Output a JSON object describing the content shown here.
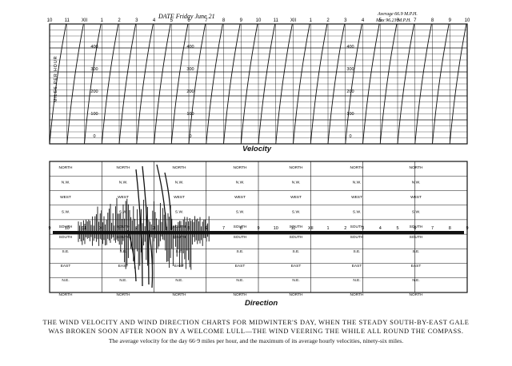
{
  "velocity_chart": {
    "date_label": "DATE Friday June 21",
    "average_line1": "Average 66.9 M.P.H.",
    "average_line2": "Max 96.21 M.P.H.",
    "y_axis_label": "MILES PER HOUR",
    "title": "Velocity",
    "hour_labels": [
      "10",
      "11",
      "XII",
      "1",
      "2",
      "3",
      "4",
      "5",
      "6",
      "7",
      "8",
      "9",
      "10",
      "11",
      "XII",
      "1",
      "2",
      "3",
      "4",
      "5",
      "6",
      "7",
      "8",
      "9",
      "10"
    ],
    "speed_scale": [
      "400",
      "300",
      "200",
      "100",
      "0"
    ]
  },
  "direction_chart": {
    "title": "Direction",
    "hour_labels": [
      "9",
      "10",
      "11",
      "XII",
      "1",
      "2",
      "3",
      "4",
      "5",
      "6",
      "7",
      "8",
      "9",
      "10",
      "11",
      "XII",
      "1",
      "2",
      "3",
      "4",
      "5",
      "6",
      "7",
      "8",
      "9"
    ],
    "upper_labels": [
      "NORTH",
      "N.W.",
      "WEST",
      "S.W.",
      "SOUTH"
    ],
    "lower_labels": [
      "SOUTH",
      "S.E.",
      "EAST",
      "N.E.",
      "NORTH"
    ]
  },
  "caption": {
    "line1": "THE WIND VELOCITY AND WIND DIRECTION CHARTS FOR MIDWINTER'S DAY, WHEN THE STEADY SOUTH-BY-EAST GALE",
    "line2": "WAS BROKEN SOON AFTER NOON BY A WELCOME LULL—THE WIND VEERING THE WHILE ALL ROUND THE COMPASS.",
    "line3": "The average velocity for the day 66·9 miles per hour, and the maximum of its average hourly velocities, ninety-six miles."
  },
  "colors": {
    "ink": "#111111",
    "paper": "#ffffff"
  }
}
